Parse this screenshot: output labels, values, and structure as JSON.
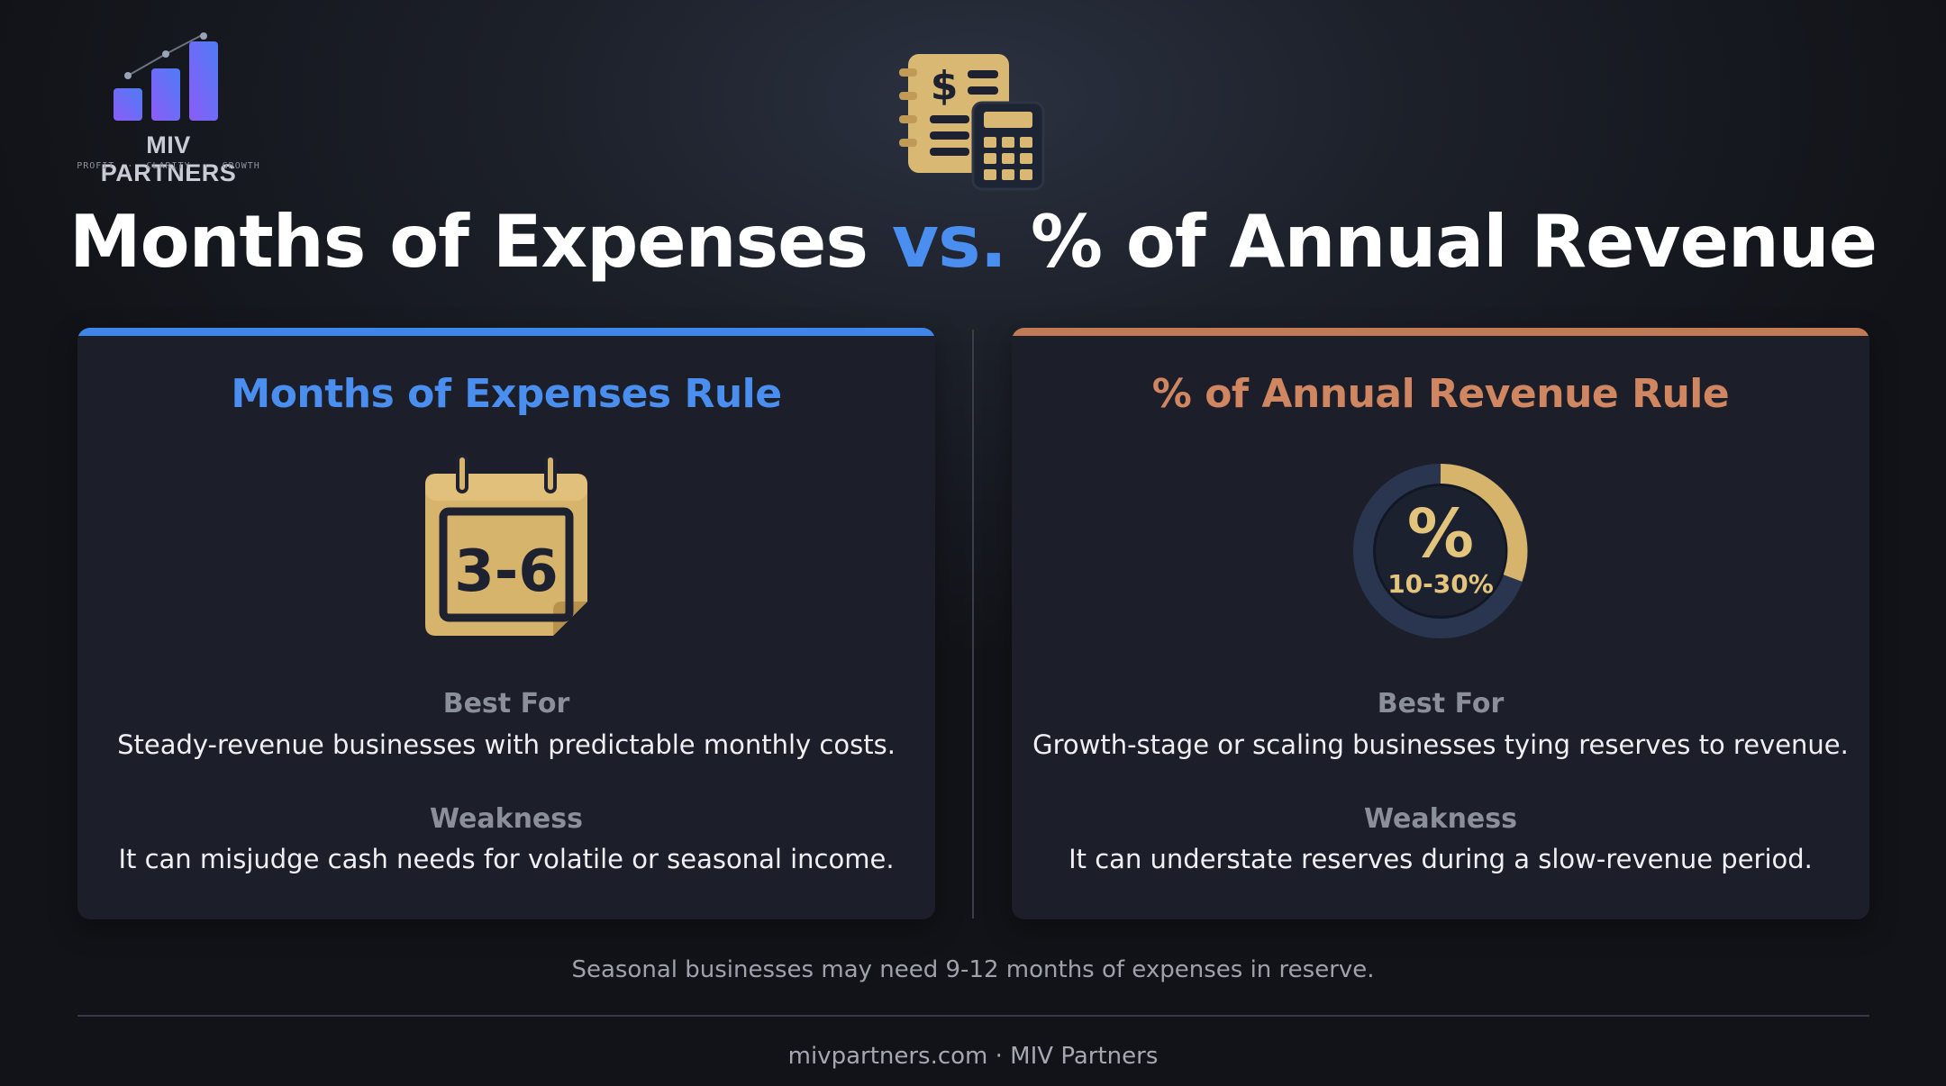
{
  "logo": {
    "name": "MIV PARTNERS",
    "tagline": "PROFIT  ·  CLARITY  ·  GROWTH",
    "icon": "bar-chart-logo-icon"
  },
  "header": {
    "icon": "ledger-calculator-icon",
    "title_part1": "Months of Expenses ",
    "title_vs": "vs.",
    "title_part2": " % of Annual Revenue"
  },
  "cards": [
    {
      "heading": "Months of Expenses Rule",
      "icon": "calendar-icon",
      "graphic_value": "3-6",
      "best_label": "Best For",
      "best_text": "Steady-revenue businesses with predictable monthly costs.",
      "weak_label": "Weakness",
      "weak_text": "It can misjudge cash needs for volatile or seasonal income.",
      "accent": "#3f86ea"
    },
    {
      "heading": "% of Annual Revenue Rule",
      "icon": "percent-gauge-icon",
      "graphic_symbol": "%",
      "graphic_value": "10-30%",
      "best_label": "Best For",
      "best_text": "Growth-stage or scaling businesses tying reserves to revenue.",
      "weak_label": "Weakness",
      "weak_text": "It can understate reserves during a slow-revenue period.",
      "accent": "#c07a55"
    }
  ],
  "note": "Seasonal businesses may need 9-12 months of expenses in reserve.",
  "footer": "mivpartners.com · MIV Partners",
  "colors": {
    "blue_accent": "#4a8ff0",
    "orange_accent": "#d08660",
    "gold": "#d8b56a",
    "background": "#15181f",
    "card": "#1c1f2a"
  }
}
